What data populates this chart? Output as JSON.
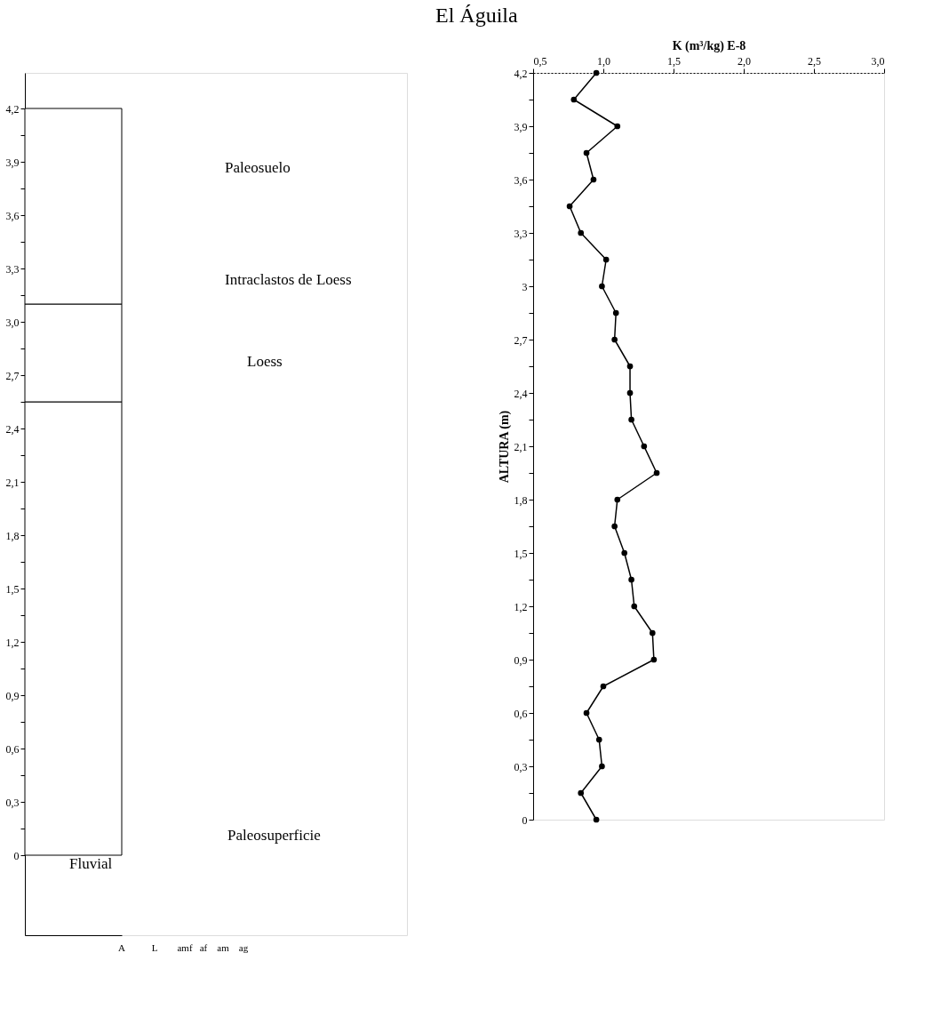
{
  "chart_data": [
    {
      "type": "bar",
      "stacked": true,
      "categories": [
        null
      ],
      "series": [
        {
          "color": "#ffffff",
          "values": [
            2.55
          ]
        },
        {
          "color": "#ffffff",
          "values": [
            0.55
          ]
        },
        {
          "color": "#ffffff",
          "values": [
            1.1
          ]
        }
      ],
      "ylim": [
        -0.45,
        4.4
      ],
      "yticks": [
        {
          "value": 0,
          "label": "0"
        },
        {
          "value": 0.15,
          "label": null
        },
        {
          "value": 0.3,
          "label": "0,3"
        },
        {
          "value": 0.45,
          "label": null
        },
        {
          "value": 0.6,
          "label": "0,6"
        },
        {
          "value": 0.75,
          "label": null
        },
        {
          "value": 0.9,
          "label": "0,9"
        },
        {
          "value": 1.05,
          "label": null
        },
        {
          "value": 1.2,
          "label": "1,2"
        },
        {
          "value": 1.35,
          "label": null
        },
        {
          "value": 1.5,
          "label": "1,5"
        },
        {
          "value": 1.65,
          "label": null
        },
        {
          "value": 1.8,
          "label": "1,8"
        },
        {
          "value": 1.95,
          "label": null
        },
        {
          "value": 2.1,
          "label": "2,1"
        },
        {
          "value": 2.25,
          "label": null
        },
        {
          "value": 2.4,
          "label": "2,4"
        },
        {
          "value": 2.55,
          "label": null
        },
        {
          "value": 2.7,
          "label": "2,7"
        },
        {
          "value": 2.85,
          "label": null
        },
        {
          "value": 3.0,
          "label": "3,0"
        },
        {
          "value": 3.15,
          "label": null
        },
        {
          "value": 3.3,
          "label": "3,3"
        },
        {
          "value": 3.45,
          "label": null
        },
        {
          "value": 3.6,
          "label": "3,6"
        },
        {
          "value": 3.75,
          "label": null
        },
        {
          "value": 3.9,
          "label": "3,9"
        },
        {
          "value": 4.05,
          "label": null
        },
        {
          "value": 4.2,
          "label": "4,2"
        }
      ],
      "annotations": [
        "Paleosuelo",
        "Intraclastos de Loess",
        "Loess",
        "Paleosuperficie",
        "Fluvial",
        "A",
        "L",
        "amf",
        "af",
        "am",
        "ag"
      ]
    },
    {
      "type": "line",
      "title": "El Águila",
      "xlabel": "K (m³/kg) E-8",
      "ylabel": "ALTURA (m)",
      "marker": "circle",
      "line_style": "solid",
      "grid": false,
      "legend": false,
      "x": [
        0.95,
        0.79,
        1.1,
        0.88,
        0.93,
        0.76,
        0.84,
        1.02,
        0.99,
        1.09,
        1.08,
        1.19,
        1.19,
        1.2,
        1.29,
        1.38,
        1.1,
        1.08,
        1.15,
        1.2,
        1.22,
        1.35,
        1.36,
        1.0,
        0.88,
        0.97,
        0.99,
        0.84,
        0.95
      ],
      "series": [
        {
          "color": "#000000",
          "values": [
            4.2,
            4.05,
            3.9,
            3.75,
            3.6,
            3.45,
            3.3,
            3.15,
            3.0,
            2.85,
            2.7,
            2.55,
            2.4,
            2.25,
            2.1,
            1.95,
            1.8,
            1.65,
            1.5,
            1.35,
            1.2,
            1.05,
            0.9,
            0.75,
            0.6,
            0.45,
            0.3,
            0.15,
            0
          ]
        }
      ],
      "xlim": [
        0.5,
        3.0
      ],
      "xticks": [
        {
          "value": 0.5,
          "label": "0,5"
        },
        {
          "value": 1.0,
          "label": "1,0"
        },
        {
          "value": 1.5,
          "label": "1,5"
        },
        {
          "value": 2.0,
          "label": "2,0"
        },
        {
          "value": 2.5,
          "label": "2,5"
        },
        {
          "value": 3.0,
          "label": "3,0"
        }
      ],
      "ylim": [
        0,
        4.2
      ],
      "yticks": [
        {
          "value": 0,
          "label": "0"
        },
        {
          "value": 0.15,
          "label": null
        },
        {
          "value": 0.3,
          "label": "0,3"
        },
        {
          "value": 0.45,
          "label": null
        },
        {
          "value": 0.6,
          "label": "0,6"
        },
        {
          "value": 0.75,
          "label": null
        },
        {
          "value": 0.9,
          "label": "0,9"
        },
        {
          "value": 1.05,
          "label": null
        },
        {
          "value": 1.2,
          "label": "1,2"
        },
        {
          "value": 1.35,
          "label": null
        },
        {
          "value": 1.5,
          "label": "1,5"
        },
        {
          "value": 1.65,
          "label": null
        },
        {
          "value": 1.8,
          "label": "1,8"
        },
        {
          "value": 1.95,
          "label": null
        },
        {
          "value": 2.1,
          "label": "2,1"
        },
        {
          "value": 2.25,
          "label": null
        },
        {
          "value": 2.4,
          "label": "2,4"
        },
        {
          "value": 2.55,
          "label": null
        },
        {
          "value": 2.7,
          "label": "2,7"
        },
        {
          "value": 2.85,
          "label": null
        },
        {
          "value": 3.0,
          "label": "3"
        },
        {
          "value": 3.15,
          "label": null
        },
        {
          "value": 3.3,
          "label": "3,3"
        },
        {
          "value": 3.45,
          "label": null
        },
        {
          "value": 3.6,
          "label": "3,6"
        },
        {
          "value": 3.75,
          "label": null
        },
        {
          "value": 3.9,
          "label": "3,9"
        },
        {
          "value": 4.05,
          "label": null
        },
        {
          "value": 4.2,
          "label": "4,2"
        }
      ]
    }
  ]
}
